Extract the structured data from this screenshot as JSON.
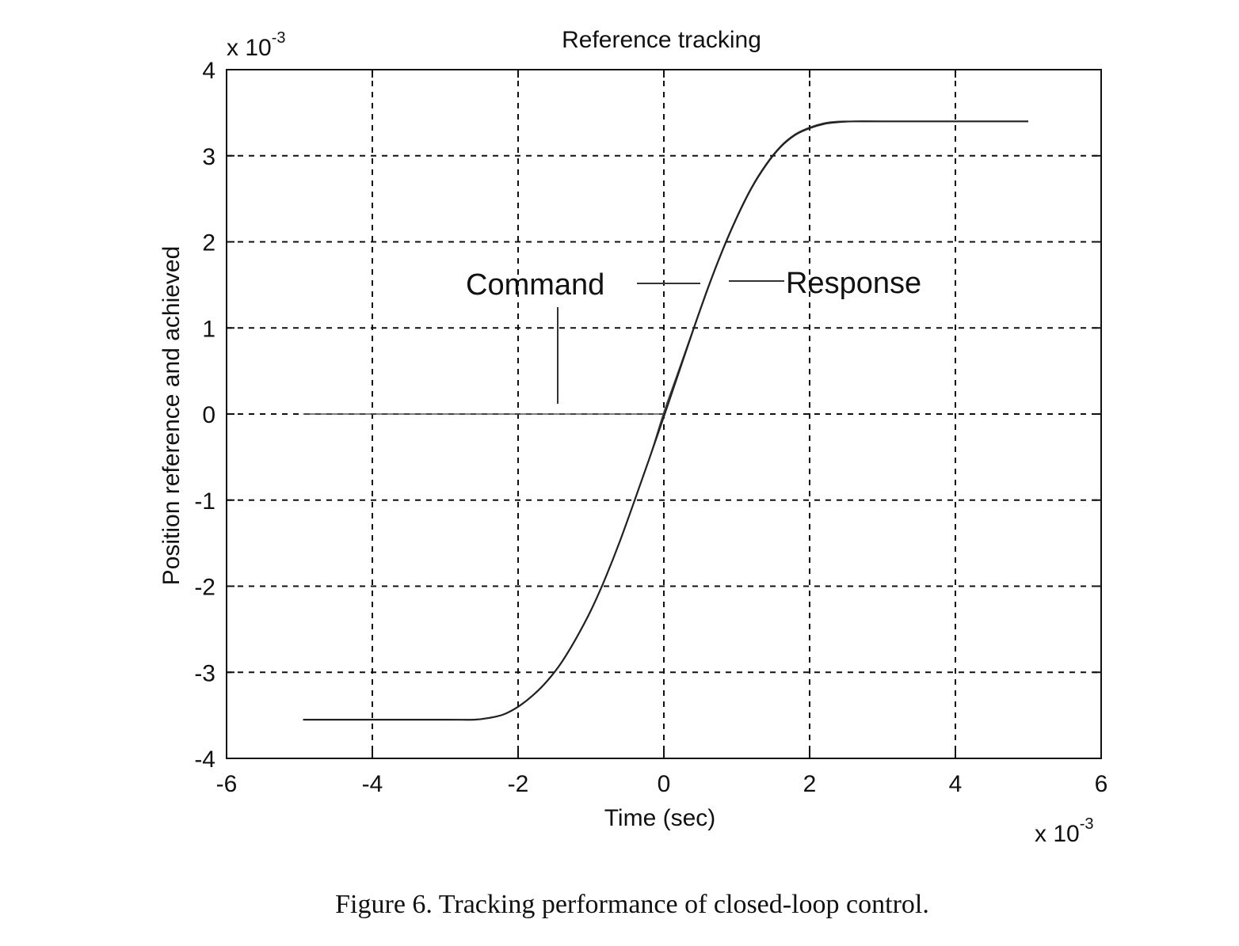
{
  "chart_data": {
    "type": "line",
    "title": "Reference tracking",
    "xlabel": "Time (sec)",
    "ylabel": "Position reference and achieved",
    "x_multiplier_base": "x 10",
    "x_multiplier_exp": "-3",
    "y_multiplier_base": "x 10",
    "y_multiplier_exp": "-3",
    "xlim": [
      -6,
      6
    ],
    "ylim": [
      -4,
      4
    ],
    "x_ticks": [
      -6,
      -4,
      -2,
      0,
      2,
      4,
      6
    ],
    "y_ticks": [
      -4,
      -3,
      -2,
      -1,
      0,
      1,
      2,
      3,
      4
    ],
    "x_tick_labels": [
      "-6",
      "-4",
      "-2",
      "0",
      "2",
      "4",
      "6"
    ],
    "y_tick_labels": [
      "-4",
      "-3",
      "-2",
      "-1",
      "0",
      "1",
      "2",
      "3",
      "4"
    ],
    "grid": true,
    "grid_style": "dashed",
    "line_color": "#222222",
    "series": [
      {
        "name": "Command",
        "x": [
          -4.95,
          -4.0,
          -3.0,
          -2.6,
          -2.4,
          -2.2,
          -2.0,
          -1.8,
          -1.6,
          -1.4,
          -1.2,
          -1.0,
          -0.8,
          -0.6,
          -0.4,
          -0.2,
          0.0,
          0.2,
          0.4,
          0.6,
          0.8,
          1.0,
          1.2,
          1.4,
          1.6,
          1.8,
          2.0,
          2.2,
          2.4,
          2.6,
          3.0,
          4.0,
          5.0
        ],
        "y": [
          -3.55,
          -3.55,
          -3.55,
          -3.55,
          -3.53,
          -3.49,
          -3.4,
          -3.27,
          -3.1,
          -2.88,
          -2.6,
          -2.28,
          -1.9,
          -1.47,
          -1.0,
          -0.52,
          -0.03,
          0.47,
          0.97,
          1.45,
          1.89,
          2.28,
          2.62,
          2.89,
          3.1,
          3.24,
          3.32,
          3.37,
          3.39,
          3.4,
          3.4,
          3.4,
          3.4
        ]
      },
      {
        "name": "Response",
        "x": [
          -4.95,
          -4.0,
          -3.0,
          -2.6,
          -2.4,
          -2.2,
          -2.0,
          -1.8,
          -1.6,
          -1.4,
          -1.2,
          -1.0,
          -0.8,
          -0.6,
          -0.4,
          -0.2,
          0.0,
          0.2,
          0.4,
          0.6,
          0.8,
          1.0,
          1.2,
          1.4,
          1.6,
          1.8,
          2.0,
          2.2,
          2.4,
          2.6,
          3.0,
          4.0,
          5.0
        ],
        "y": [
          -3.55,
          -3.55,
          -3.55,
          -3.55,
          -3.53,
          -3.49,
          -3.4,
          -3.27,
          -3.1,
          -2.88,
          -2.6,
          -2.28,
          -1.9,
          -1.47,
          -1.0,
          -0.52,
          0.02,
          0.5,
          0.98,
          1.46,
          1.9,
          2.29,
          2.63,
          2.9,
          3.11,
          3.25,
          3.33,
          3.38,
          3.4,
          3.4,
          3.4,
          3.4,
          3.4
        ]
      }
    ],
    "annotations": [
      {
        "text": "Command",
        "target_series": "Command"
      },
      {
        "text": "Response",
        "target_series": "Response"
      }
    ]
  },
  "caption": "Figure 6.  Tracking performance of closed-loop control."
}
